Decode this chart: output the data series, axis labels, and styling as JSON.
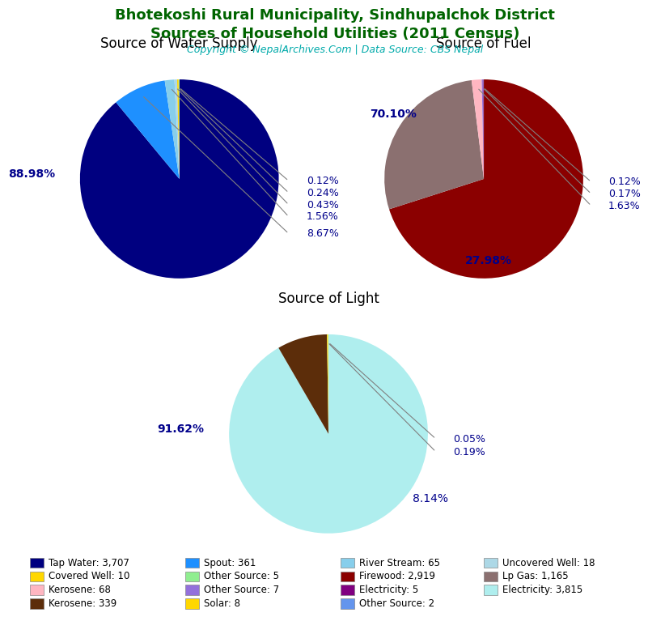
{
  "title_line1": "Bhotekoshi Rural Municipality, Sindhupalchok District",
  "title_line2": "Sources of Household Utilities (2011 Census)",
  "copyright": "Copyright © NepalArchives.Com | Data Source: CBS Nepal",
  "title_color": "#006400",
  "copyright_color": "#00AAAA",
  "water_title": "Source of Water Supply",
  "water_values": [
    3707,
    361,
    65,
    18,
    10,
    5
  ],
  "water_pcts": [
    "88.98%",
    "8.67%",
    "1.56%",
    "0.43%",
    "0.24%",
    "0.12%"
  ],
  "water_colors": [
    "#000080",
    "#1E90FF",
    "#87CEEB",
    "#ADD8E6",
    "#FFD700",
    "#90EE90"
  ],
  "fuel_title": "Source of Fuel",
  "fuel_values": [
    2919,
    1165,
    68,
    7,
    5,
    2
  ],
  "fuel_pcts": [
    "70.10%",
    "27.98%",
    "1.63%",
    "0.17%",
    "0.12%",
    ""
  ],
  "fuel_colors": [
    "#8B0000",
    "#8B7070",
    "#FFB6C1",
    "#9370DB",
    "#800080",
    "#6495ED"
  ],
  "light_title": "Source of Light",
  "light_values": [
    3815,
    339,
    8,
    2
  ],
  "light_pcts": [
    "91.62%",
    "8.14%",
    "0.19%",
    "0.05%"
  ],
  "light_colors": [
    "#AFEEEE",
    "#5C2D0A",
    "#FFD700",
    "#90EE90"
  ],
  "label_color": "#00008B",
  "legend_rows": [
    [
      {
        "label": "Tap Water: 3,707",
        "color": "#000080"
      },
      {
        "label": "Spout: 361",
        "color": "#1E90FF"
      },
      {
        "label": "River Stream: 65",
        "color": "#87CEEB"
      },
      {
        "label": "Uncovered Well: 18",
        "color": "#ADD8E6"
      }
    ],
    [
      {
        "label": "Covered Well: 10",
        "color": "#FFD700"
      },
      {
        "label": "Other Source: 5",
        "color": "#90EE90"
      },
      {
        "label": "Firewood: 2,919",
        "color": "#8B0000"
      },
      {
        "label": "Lp Gas: 1,165",
        "color": "#8B7070"
      }
    ],
    [
      {
        "label": "Kerosene: 68",
        "color": "#FFB6C1"
      },
      {
        "label": "Other Source: 7",
        "color": "#9370DB"
      },
      {
        "label": "Electricity: 5",
        "color": "#800080"
      },
      {
        "label": "Electricity: 3,815",
        "color": "#AFEEEE"
      }
    ],
    [
      {
        "label": "Kerosene: 339",
        "color": "#5C2D0A"
      },
      {
        "label": "Solar: 8",
        "color": "#FFD700"
      },
      {
        "label": "Other Source: 2",
        "color": "#6495ED"
      },
      {
        "label": "",
        "color": null
      }
    ]
  ]
}
